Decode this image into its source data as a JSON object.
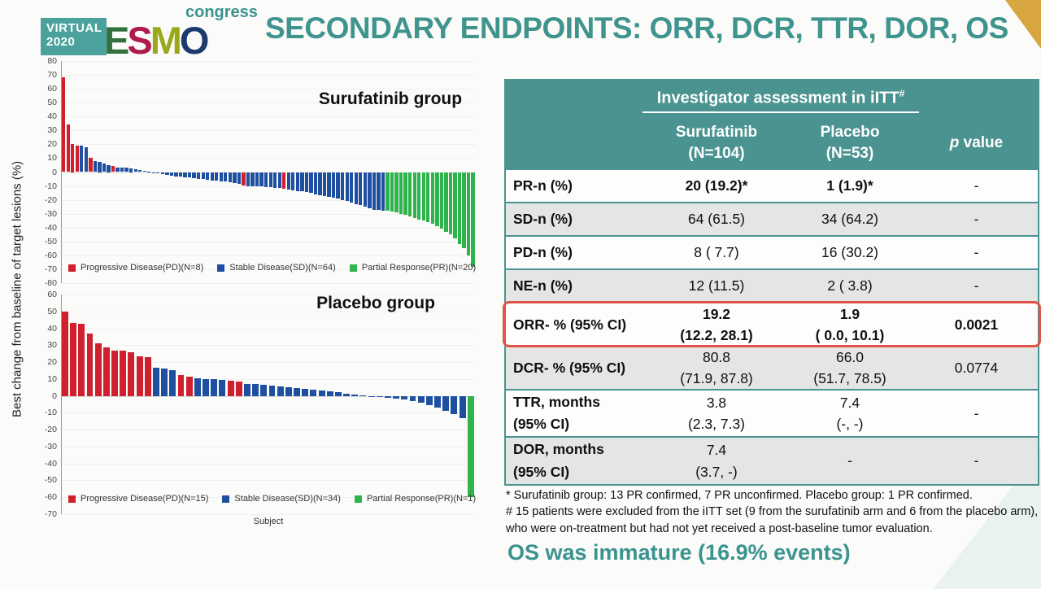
{
  "slide": {
    "logo": {
      "virtual": "VIRTUAL",
      "year": "2020",
      "letters": [
        "E",
        "S",
        "M",
        "O"
      ],
      "congress": "congress"
    },
    "title": "SECONDARY ENDPOINTS: ORR, DCR, TTR, DOR, OS",
    "footnotes": [
      "* Surufatinib group: 13 PR confirmed, 7 PR unconfirmed. Placebo group: 1 PR confirmed.",
      "# 15 patients were excluded from the iITT set (9 from the surufatinib arm and 6 from the placebo arm), who were on-treatment but had not yet received a post-baseline tumor evaluation."
    ],
    "os_note": "OS was immature (16.9% events)"
  },
  "colors": {
    "accent_teal": "#3a938e",
    "header_teal": "#4a9390",
    "pd_red": "#d0202e",
    "sd_blue": "#1f4fa0",
    "pr_green": "#2fb34d",
    "highlight_red": "#e05447",
    "gold": "#d8a63e"
  },
  "charts_shared": {
    "ylabel": "Best change from baseline of target lesions (%)",
    "xlabel": "Subject"
  },
  "chart_data": [
    {
      "type": "bar",
      "title": "Surufatinib group",
      "ylabel": "Best change from baseline of target lesions (%)",
      "ylim": [
        -80,
        80
      ],
      "ytick_step": 10,
      "grid": false,
      "legend_position": "bottom",
      "legend": [
        {
          "group": "PD",
          "label": "Progressive Disease(PD)(N=8)"
        },
        {
          "group": "SD",
          "label": "Stable Disease(SD)(N=64)"
        },
        {
          "group": "PR",
          "label": "Partial Response(PR)(N=20)"
        }
      ],
      "values": [
        68,
        34,
        20,
        19,
        19,
        18,
        10.5,
        8,
        7.5,
        6,
        5,
        4.5,
        3.5,
        3,
        3,
        2.5,
        2,
        1.5,
        1,
        0.5,
        -0.5,
        -1,
        -1.5,
        -2,
        -2.5,
        -3,
        -3.5,
        -4,
        -4,
        -4.5,
        -5,
        -5,
        -5.5,
        -6,
        -6,
        -6.5,
        -7,
        -7.5,
        -8,
        -8.5,
        -9.5,
        -10,
        -10,
        -10.5,
        -10.5,
        -11,
        -11,
        -11.5,
        -11.5,
        -12,
        -12.5,
        -13,
        -13.5,
        -14,
        -14.5,
        -15,
        -16,
        -16.5,
        -17,
        -18,
        -18.5,
        -19,
        -20,
        -21,
        -22,
        -23,
        -24,
        -25,
        -26,
        -27,
        -27.5,
        -28,
        -28,
        -28.5,
        -29,
        -30,
        -31,
        -32,
        -33,
        -34,
        -35,
        -36,
        -37,
        -39,
        -41,
        -43,
        -45,
        -48,
        -52,
        -55,
        -60,
        -68
      ],
      "groups": [
        "PD",
        "PD",
        "PD",
        "PD",
        "SD",
        "SD",
        "PD",
        "SD",
        "SD",
        "SD",
        "SD",
        "PD",
        "SD",
        "SD",
        "SD",
        "SD",
        "SD",
        "SD",
        "SD",
        "SD",
        "SD",
        "SD",
        "SD",
        "SD",
        "SD",
        "SD",
        "SD",
        "SD",
        "SD",
        "SD",
        "SD",
        "SD",
        "SD",
        "SD",
        "SD",
        "SD",
        "SD",
        "SD",
        "SD",
        "SD",
        "PD",
        "SD",
        "SD",
        "SD",
        "SD",
        "SD",
        "SD",
        "SD",
        "SD",
        "PD",
        "SD",
        "SD",
        "SD",
        "SD",
        "SD",
        "SD",
        "SD",
        "SD",
        "SD",
        "SD",
        "SD",
        "SD",
        "SD",
        "SD",
        "SD",
        "SD",
        "SD",
        "SD",
        "SD",
        "SD",
        "SD",
        "SD",
        "PR",
        "PR",
        "PR",
        "PR",
        "PR",
        "PR",
        "PR",
        "PR",
        "PR",
        "PR",
        "PR",
        "PR",
        "PR",
        "PR",
        "PR",
        "PR",
        "PR",
        "PR",
        "PR",
        "PR"
      ]
    },
    {
      "type": "bar",
      "title": "Placebo group",
      "xlabel": "Subject",
      "ylabel": "Best change from baseline of target lesions (%)",
      "ylim": [
        -70,
        60
      ],
      "ytick_step": 10,
      "grid": false,
      "legend_position": "bottom",
      "legend": [
        {
          "group": "PD",
          "label": "Progressive Disease(PD)(N=15)"
        },
        {
          "group": "SD",
          "label": "Stable Disease(SD)(N=34)"
        },
        {
          "group": "PR",
          "label": "Partial Response(PR)(N=1)"
        }
      ],
      "values": [
        50,
        43,
        42.5,
        37,
        31,
        28.5,
        27,
        27,
        26,
        23.5,
        23,
        16.5,
        16,
        15,
        12.5,
        11.5,
        10.5,
        10,
        10,
        9.5,
        9,
        8.5,
        7,
        7,
        6.5,
        6,
        5.5,
        5,
        4.5,
        4,
        3.5,
        3,
        2.5,
        2,
        1.5,
        1,
        0.5,
        -0.5,
        -0.5,
        -1,
        -1.5,
        -2,
        -3,
        -4,
        -5.5,
        -7,
        -9,
        -11,
        -13,
        -60
      ],
      "groups": [
        "PD",
        "PD",
        "PD",
        "PD",
        "PD",
        "PD",
        "PD",
        "PD",
        "PD",
        "PD",
        "PD",
        "SD",
        "SD",
        "SD",
        "PD",
        "PD",
        "SD",
        "SD",
        "SD",
        "SD",
        "PD",
        "PD",
        "SD",
        "SD",
        "SD",
        "SD",
        "SD",
        "SD",
        "SD",
        "SD",
        "SD",
        "SD",
        "SD",
        "SD",
        "SD",
        "SD",
        "SD",
        "SD",
        "SD",
        "SD",
        "SD",
        "SD",
        "SD",
        "SD",
        "SD",
        "SD",
        "SD",
        "SD",
        "SD",
        "PR"
      ]
    }
  ],
  "table": {
    "header": {
      "group_title": "Investigator assessment in iITT",
      "group_sup": "#",
      "col1": {
        "line1": "Surufatinib",
        "line2": "(N=104)"
      },
      "col2": {
        "line1": "Placebo",
        "line2": "(N=53)"
      },
      "p_italic": "p",
      "p_rest": " value"
    },
    "rows": [
      {
        "label": "PR-n (%)",
        "suru": "20 (19.2)*",
        "placebo": "1 (1.9)*",
        "p": "-"
      },
      {
        "label": "SD-n (%)",
        "suru": "64 (61.5)",
        "placebo": "34 (64.2)",
        "p": "-"
      },
      {
        "label": "PD-n (%)",
        "suru": "8 ( 7.7)",
        "placebo": "16 (30.2)",
        "p": "-"
      },
      {
        "label": "NE-n (%)",
        "suru": "12 (11.5)",
        "placebo": "2 ( 3.8)",
        "p": "-"
      },
      {
        "label": "ORR- % (95% CI)",
        "suru": "19.2",
        "suru_ci": "(12.2, 28.1)",
        "placebo": "1.9",
        "placebo_ci": "( 0.0, 10.1)",
        "p": "0.0021"
      },
      {
        "label": "DCR- % (95% CI)",
        "suru": "80.8",
        "suru_ci": "(71.9, 87.8)",
        "placebo": "66.0",
        "placebo_ci": "(51.7, 78.5)",
        "p": "0.0774"
      },
      {
        "label": "TTR, months",
        "label2": "(95% CI)",
        "suru": "3.8",
        "suru_ci": "(2.3, 7.3)",
        "placebo": "7.4",
        "placebo_ci": "(-, -)",
        "p": "-"
      },
      {
        "label": "DOR, months",
        "label2": "(95% CI)",
        "suru": "7.4",
        "suru_ci": "(3.7, -)",
        "placebo": "-",
        "p": "-"
      }
    ]
  }
}
